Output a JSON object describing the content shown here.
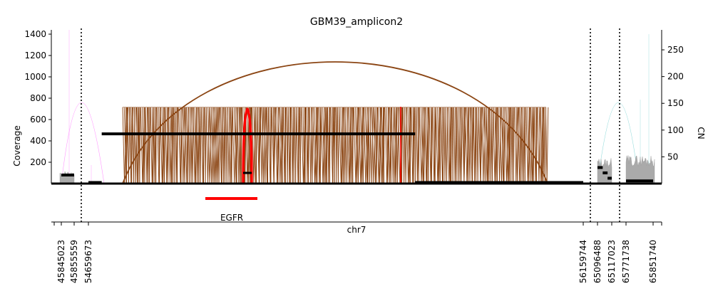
{
  "chart_data": {
    "type": "line",
    "title": "GBM39_amplicon2",
    "ylabel_left": "Coverage",
    "ylabel_right": "CN",
    "xlabel": "chr7",
    "left_axis": {
      "ticks": [
        200,
        400,
        600,
        800,
        1000,
        1200,
        1400
      ],
      "ylim": [
        0,
        1400
      ]
    },
    "right_axis": {
      "ticks": [
        50,
        100,
        150,
        200,
        250
      ],
      "ylim": [
        0,
        270
      ]
    },
    "segment_boundaries": [
      45845023,
      45855559,
      54659673,
      56159744,
      65096488,
      65117023,
      65771738,
      65851740
    ],
    "x_tick_labels": [
      "45845023",
      "45855559",
      "54659673",
      "56159744",
      "65096488",
      "65117023",
      "65771738",
      "65851740"
    ],
    "copy_number_segments": [
      {
        "start": 45845023,
        "end": 45855559,
        "cn": 16
      },
      {
        "start": 54659673,
        "end": 54700000,
        "cn": 2
      },
      {
        "start": 54700000,
        "end": 55650000,
        "cn": 93
      },
      {
        "start": 55650000,
        "end": 56159744,
        "cn": 2
      },
      {
        "start": 65096488,
        "end": 65104000,
        "cn": 30
      },
      {
        "start": 65104000,
        "end": 65111000,
        "cn": 20
      },
      {
        "start": 65111000,
        "end": 65117023,
        "cn": 10
      },
      {
        "start": 65771738,
        "end": 65851740,
        "cn": 5
      }
    ],
    "genes": [
      {
        "name": "EGFR",
        "start": 55086725,
        "end": 55200000,
        "color": "#ff0000"
      }
    ],
    "colors": {
      "coverage": "#8b4513",
      "copy_number": "#000000",
      "highlight": "#ff0000",
      "boundary": "#000000",
      "faint": "#ff66ff",
      "faint_right": "#66cccc"
    },
    "grid": false
  }
}
